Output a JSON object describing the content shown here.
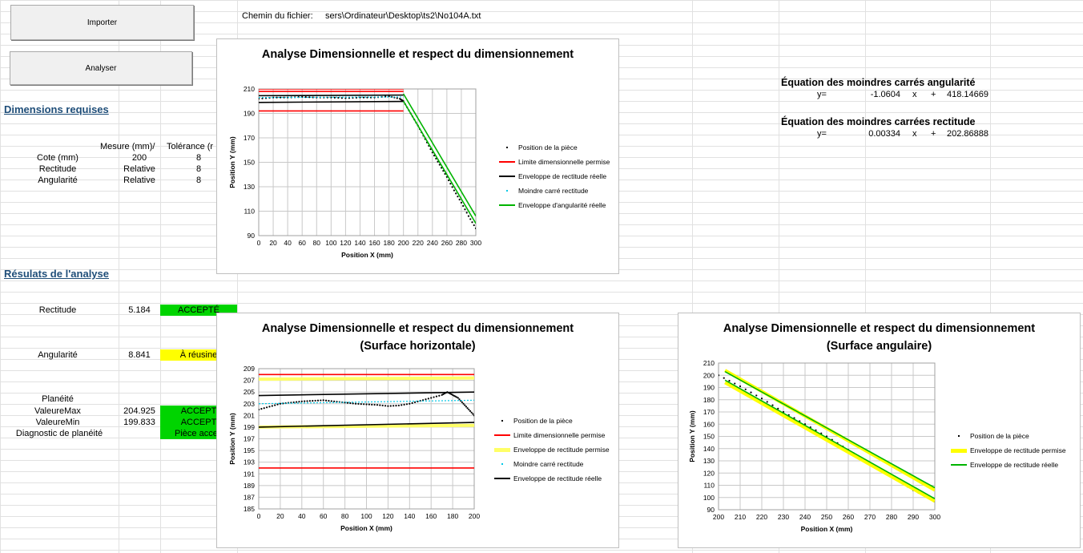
{
  "toolbar": {
    "import_label": "Importer",
    "analyse_label": "Analyser"
  },
  "file": {
    "label": "Chemin du fichier:",
    "path": "sers\\Ordinateur\\Desktop\\ts2\\No104A.txt"
  },
  "requirements": {
    "heading": "Dimensions requises",
    "col_measure": "Mesure (mm)/",
    "col_tolerance": "Tolérance (r",
    "rows": [
      {
        "label": "Cote (mm)",
        "measure": "200",
        "tolerance": "8"
      },
      {
        "label": "Rectitude",
        "measure": "Relative",
        "tolerance": "8"
      },
      {
        "label": "Angularité",
        "measure": "Relative",
        "tolerance": "8"
      }
    ]
  },
  "results": {
    "heading": "Résulats de l'analyse",
    "rectitude": {
      "label": "Rectitude",
      "value": "5.184",
      "status": "ACCEPTÉ"
    },
    "angularite": {
      "label": "Angularité",
      "value": "8.841",
      "status": "À réusine"
    },
    "planeite_label": "Planéité",
    "valmax": {
      "label": "ValeureMax",
      "value": "204.925",
      "status": "ACCEPT"
    },
    "valmin": {
      "label": "ValeureMin",
      "value": "199.833",
      "status": "ACCEPT"
    },
    "diagnostic": {
      "label": "Diagnostic de planéité",
      "status": "Pièce accep"
    },
    "colors": {
      "accept": "#00d400",
      "warn": "#ffff00"
    }
  },
  "equations": {
    "angular": {
      "title": "Équation des moindres carrés angularité",
      "y": "y=",
      "slope": "-1.0604",
      "x": "x",
      "plus": "+",
      "intercept": "418.14669"
    },
    "straight": {
      "title": "Équation des moindres carrées rectitude",
      "y": "y=",
      "slope": "0.00334",
      "x": "x",
      "plus": "+",
      "intercept": "202.86888"
    }
  },
  "chart_data": [
    {
      "type": "line",
      "title": "Analyse Dimensionnelle et respect du dimensionnement",
      "xlabel": "Position X (mm)",
      "ylabel": "Position Y (mm)",
      "xlim": [
        0,
        300
      ],
      "ylim": [
        90,
        210
      ],
      "xticks": [
        0,
        20,
        40,
        60,
        80,
        100,
        120,
        140,
        160,
        180,
        200,
        220,
        240,
        260,
        280,
        300
      ],
      "yticks": [
        90,
        110,
        130,
        150,
        170,
        190,
        210
      ],
      "legend": "right",
      "series": [
        {
          "name": "Position de la pièce",
          "style": "dots",
          "color": "#000000",
          "x": [
            0,
            20,
            40,
            60,
            80,
            100,
            120,
            140,
            160,
            180,
            195,
            200,
            210,
            220,
            230,
            240,
            250,
            260,
            270,
            280,
            290,
            300
          ],
          "y": [
            202,
            203,
            203,
            203.5,
            203,
            203,
            202.5,
            203,
            203,
            204,
            202,
            200,
            190,
            180,
            169,
            158,
            148,
            138,
            127,
            117,
            106,
            96
          ]
        },
        {
          "name": "Limite dimensionnelle permise",
          "style": "line",
          "color": "#ff0000",
          "segments": [
            [
              [
                0,
                208
              ],
              [
                200,
                208
              ]
            ],
            [
              [
                0,
                192
              ],
              [
                200,
                192
              ]
            ],
            [
              [
                0,
                210
              ],
              [
                200,
                210
              ]
            ]
          ]
        },
        {
          "name": "Enveloppe de rectitude réelle",
          "style": "line",
          "color": "#000000",
          "segments": [
            [
              [
                0,
                199
              ],
              [
                200,
                199.8
              ]
            ],
            [
              [
                0,
                204.5
              ],
              [
                200,
                205
              ]
            ]
          ]
        },
        {
          "name": "Moindre carré rectitude",
          "style": "dashed",
          "color": "#00c8e6",
          "segments": [
            [
              [
                0,
                203
              ],
              [
                200,
                203.5
              ]
            ]
          ]
        },
        {
          "name": "Enveloppe d'angularité réelle",
          "style": "line",
          "color": "#00b400",
          "segments": [
            [
              [
                200,
                206
              ],
              [
                300,
                106
              ]
            ],
            [
              [
                200,
                200
              ],
              [
                300,
                100
              ]
            ]
          ]
        }
      ]
    },
    {
      "type": "line",
      "title": "Analyse Dimensionnelle et respect du dimensionnement (Surface horizontale)",
      "xlabel": "Position X (mm)",
      "ylabel": "Position Y (mm)",
      "xlim": [
        0,
        200
      ],
      "ylim": [
        185,
        209
      ],
      "xticks": [
        0,
        20,
        40,
        60,
        80,
        100,
        120,
        140,
        160,
        180,
        200
      ],
      "yticks": [
        185,
        187,
        189,
        191,
        193,
        195,
        197,
        199,
        201,
        203,
        205,
        207,
        209
      ],
      "legend": "right",
      "series": [
        {
          "name": "Position de la pièce",
          "style": "dots",
          "color": "#000000",
          "x": [
            0,
            10,
            20,
            30,
            40,
            50,
            60,
            70,
            80,
            90,
            100,
            110,
            120,
            130,
            140,
            150,
            160,
            170,
            175,
            180,
            185,
            190,
            195,
            200
          ],
          "y": [
            202,
            202.5,
            203,
            203.2,
            203.4,
            203.5,
            203.6,
            203.4,
            203.2,
            203,
            202.9,
            202.8,
            202.6,
            202.7,
            203,
            203.5,
            204,
            204.5,
            205,
            204.5,
            204,
            203,
            202,
            201
          ]
        },
        {
          "name": "Limite dimensionnelle permise",
          "style": "line",
          "color": "#ff0000",
          "segments": [
            [
              [
                0,
                208
              ],
              [
                200,
                208
              ]
            ],
            [
              [
                0,
                192
              ],
              [
                200,
                192
              ]
            ]
          ]
        },
        {
          "name": "Enveloppe de rectitude permise",
          "style": "thick",
          "color": "#ffff66",
          "segments": [
            [
              [
                0,
                207.2
              ],
              [
                200,
                207.4
              ]
            ],
            [
              [
                0,
                199
              ],
              [
                200,
                199.3
              ]
            ]
          ]
        },
        {
          "name": "Moindre carré rectitude",
          "style": "dashed",
          "color": "#00c8e6",
          "segments": [
            [
              [
                0,
                203
              ],
              [
                200,
                203.6
              ]
            ]
          ]
        },
        {
          "name": "Enveloppe de rectitude réelle",
          "style": "line",
          "color": "#000000",
          "segments": [
            [
              [
                0,
                204.4
              ],
              [
                200,
                205
              ]
            ],
            [
              [
                0,
                199
              ],
              [
                200,
                199.8
              ]
            ]
          ]
        }
      ]
    },
    {
      "type": "line",
      "title": "Analyse Dimensionnelle et respect du dimensionnement (Surface angulaire)",
      "xlabel": "Position X (mm)",
      "ylabel": "Position Y (mm)",
      "xlim": [
        200,
        300
      ],
      "ylim": [
        90,
        210
      ],
      "xticks": [
        200,
        210,
        220,
        230,
        240,
        250,
        260,
        270,
        280,
        290,
        300
      ],
      "yticks": [
        90,
        100,
        110,
        120,
        130,
        140,
        150,
        160,
        170,
        180,
        190,
        200,
        210
      ],
      "legend": "right",
      "series": [
        {
          "name": "Position de la pièce",
          "style": "dots",
          "color": "#000000",
          "x": [
            200,
            210,
            220,
            230,
            240,
            250,
            260,
            270,
            280,
            290,
            300
          ],
          "y": [
            200,
            191,
            181,
            170,
            160,
            150,
            139,
            128,
            117,
            106,
            97
          ]
        },
        {
          "name": "Enveloppe de rectitude permise",
          "style": "thick",
          "color": "#ffff00",
          "segments": [
            [
              [
                203,
                204
              ],
              [
                300,
                106
              ]
            ],
            [
              [
                203,
                194
              ],
              [
                300,
                97
              ]
            ]
          ]
        },
        {
          "name": "Enveloppe de rectitude réelle",
          "style": "line",
          "color": "#00b400",
          "segments": [
            [
              [
                203,
                203
              ],
              [
                300,
                108
              ]
            ],
            [
              [
                203,
                196
              ],
              [
                300,
                99
              ]
            ]
          ]
        }
      ]
    }
  ]
}
